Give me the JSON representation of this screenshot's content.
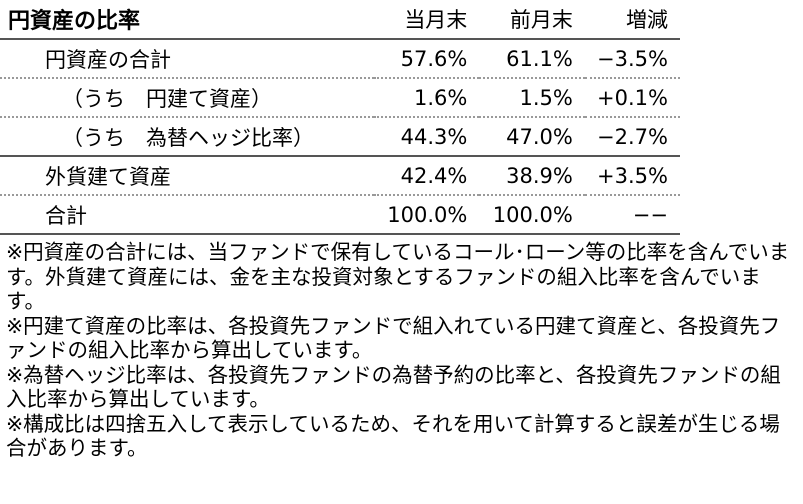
{
  "table": {
    "header": [
      "円資産の比率",
      "当月末",
      "前月末",
      "増減"
    ],
    "rows": [
      [
        "円資産の合計",
        "57.6%",
        "61.1%",
        "−3.5%"
      ],
      [
        "（うち　円建て資産）",
        "1.6%",
        "1.5%",
        "+0.1%"
      ],
      [
        "（うち　為替ヘッジ比率）",
        "44.3%",
        "47.0%",
        "−2.7%"
      ],
      [
        "外貨建て資産",
        "42.4%",
        "38.9%",
        "+3.5%"
      ],
      [
        "合計",
        "100.0%",
        "100.0%",
        "−−"
      ]
    ]
  },
  "notes": [
    "※円資産の合計には、当ファンドで保有しているコール･ローン等の比率を含んでいます。外貨建て資産には、金を主な投資対象とするファンドの組入比率を含んでいます。",
    "※円建て資産の比率は、各投資先ファンドで組入れている円建て資産と、各投資先ファンドの組入比率から算出しています。",
    "※為替ヘッジ比率は、各投資先ファンドの為替予約の比率と、各投資先ファンドの組入比率から算出しています。",
    "※構成比は四捨五入して表示しているため、それを用いて計算すると誤差が生じる場合があります。"
  ]
}
